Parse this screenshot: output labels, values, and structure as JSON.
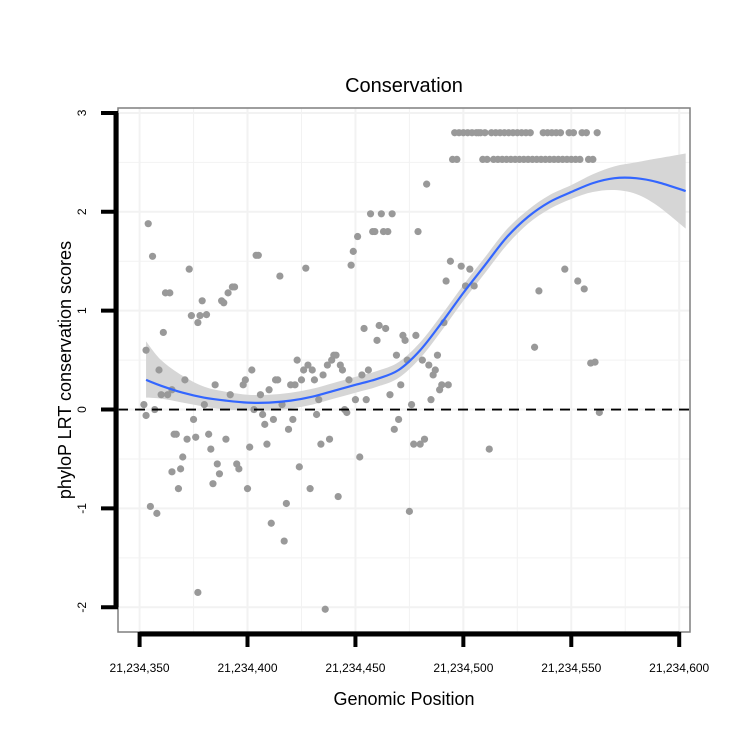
{
  "chart_data": {
    "type": "scatter",
    "title": "Conservation",
    "xlabel": "Genomic Position",
    "ylabel": "phyloP LRT conservation scores",
    "xlim": [
      21234340,
      21234605
    ],
    "ylim": [
      -2.25,
      3.05
    ],
    "x_ticks": [
      21234350,
      21234400,
      21234450,
      21234500,
      21234550,
      21234600
    ],
    "x_tick_labels": [
      "21,234,350",
      "21,234,400",
      "21,234,450",
      "21,234,500",
      "21,234,550",
      "21,234,600"
    ],
    "y_ticks": [
      -2,
      -1,
      0,
      1,
      2,
      3
    ],
    "y_tick_labels": [
      "-2",
      "-1",
      "0",
      "1",
      "2",
      "3"
    ],
    "reference_line": {
      "y": 0,
      "style": "dashed"
    },
    "grid": true,
    "colors": {
      "points": "#999999",
      "smooth": "#3366ff",
      "ribbon": "#d6d6d6",
      "background": "#ffffff",
      "grid": "#f2f2f2",
      "border": "#7f7f7f"
    },
    "smooth": {
      "x": [
        21234353,
        21234360,
        21234370,
        21234380,
        21234390,
        21234400,
        21234410,
        21234420,
        21234430,
        21234440,
        21234450,
        21234460,
        21234470,
        21234480,
        21234490,
        21234500,
        21234510,
        21234520,
        21234530,
        21234540,
        21234550,
        21234560,
        21234570,
        21234580,
        21234590,
        21234603
      ],
      "y": [
        0.3,
        0.24,
        0.17,
        0.12,
        0.09,
        0.07,
        0.07,
        0.09,
        0.13,
        0.19,
        0.25,
        0.31,
        0.4,
        0.6,
        0.88,
        1.18,
        1.46,
        1.74,
        1.95,
        2.1,
        2.2,
        2.29,
        2.34,
        2.34,
        2.3,
        2.21
      ],
      "lower": [
        0.12,
        0.11,
        0.07,
        0.03,
        0.0,
        -0.01,
        -0.01,
        0.01,
        0.05,
        0.11,
        0.17,
        0.23,
        0.32,
        0.52,
        0.8,
        1.1,
        1.38,
        1.66,
        1.88,
        2.03,
        2.13,
        2.2,
        2.22,
        2.18,
        2.06,
        1.83
      ],
      "upper": [
        0.69,
        0.5,
        0.34,
        0.23,
        0.18,
        0.15,
        0.15,
        0.17,
        0.21,
        0.27,
        0.33,
        0.39,
        0.48,
        0.68,
        0.96,
        1.26,
        1.54,
        1.82,
        2.02,
        2.17,
        2.27,
        2.38,
        2.46,
        2.5,
        2.54,
        2.59
      ]
    },
    "points": [
      [
        21234353,
        0.6
      ],
      [
        21234354,
        1.88
      ],
      [
        21234356,
        1.55
      ],
      [
        21234355,
        -0.98
      ],
      [
        21234358,
        -1.05
      ],
      [
        21234352,
        0.05
      ],
      [
        21234353,
        -0.06
      ],
      [
        21234357,
        0.0
      ],
      [
        21234359,
        0.4
      ],
      [
        21234360,
        0.15
      ],
      [
        21234361,
        0.78
      ],
      [
        21234362,
        1.18
      ],
      [
        21234364,
        1.18
      ],
      [
        21234363,
        0.15
      ],
      [
        21234365,
        0.2
      ],
      [
        21234366,
        -0.25
      ],
      [
        21234365,
        -0.63
      ],
      [
        21234367,
        -0.25
      ],
      [
        21234368,
        -0.8
      ],
      [
        21234369,
        -0.6
      ],
      [
        21234370,
        -0.48
      ],
      [
        21234371,
        0.3
      ],
      [
        21234372,
        -0.3
      ],
      [
        21234373,
        1.42
      ],
      [
        21234374,
        0.95
      ],
      [
        21234375,
        -0.1
      ],
      [
        21234376,
        -0.28
      ],
      [
        21234377,
        0.88
      ],
      [
        21234378,
        0.95
      ],
      [
        21234379,
        1.1
      ],
      [
        21234380,
        0.05
      ],
      [
        21234381,
        0.96
      ],
      [
        21234382,
        -0.25
      ],
      [
        21234377,
        -1.85
      ],
      [
        21234383,
        -0.4
      ],
      [
        21234384,
        -0.75
      ],
      [
        21234385,
        0.25
      ],
      [
        21234386,
        -0.55
      ],
      [
        21234387,
        -0.65
      ],
      [
        21234388,
        1.1
      ],
      [
        21234389,
        1.08
      ],
      [
        21234390,
        -0.3
      ],
      [
        21234391,
        1.18
      ],
      [
        21234392,
        0.15
      ],
      [
        21234393,
        1.24
      ],
      [
        21234394,
        1.24
      ],
      [
        21234395,
        -0.55
      ],
      [
        21234396,
        -0.6
      ],
      [
        21234398,
        0.25
      ],
      [
        21234399,
        0.3
      ],
      [
        21234400,
        -0.8
      ],
      [
        21234401,
        -0.38
      ],
      [
        21234402,
        0.4
      ],
      [
        21234404,
        1.56
      ],
      [
        21234405,
        1.56
      ],
      [
        21234403,
        0.0
      ],
      [
        21234406,
        0.15
      ],
      [
        21234407,
        -0.05
      ],
      [
        21234408,
        -0.15
      ],
      [
        21234409,
        -0.35
      ],
      [
        21234410,
        0.2
      ],
      [
        21234411,
        -1.15
      ],
      [
        21234412,
        -0.1
      ],
      [
        21234413,
        0.3
      ],
      [
        21234414,
        0.3
      ],
      [
        21234415,
        1.35
      ],
      [
        21234416,
        0.05
      ],
      [
        21234417,
        -1.33
      ],
      [
        21234418,
        -0.95
      ],
      [
        21234419,
        -0.2
      ],
      [
        21234420,
        0.25
      ],
      [
        21234421,
        -0.1
      ],
      [
        21234422,
        0.25
      ],
      [
        21234423,
        0.5
      ],
      [
        21234424,
        -0.58
      ],
      [
        21234425,
        0.3
      ],
      [
        21234426,
        0.4
      ],
      [
        21234427,
        1.43
      ],
      [
        21234428,
        0.45
      ],
      [
        21234429,
        -0.8
      ],
      [
        21234430,
        0.4
      ],
      [
        21234431,
        0.3
      ],
      [
        21234432,
        -0.05
      ],
      [
        21234433,
        0.1
      ],
      [
        21234434,
        -0.35
      ],
      [
        21234435,
        0.35
      ],
      [
        21234436,
        -2.02
      ],
      [
        21234437,
        0.45
      ],
      [
        21234438,
        -0.3
      ],
      [
        21234439,
        0.5
      ],
      [
        21234440,
        0.55
      ],
      [
        21234441,
        0.55
      ],
      [
        21234442,
        -0.88
      ],
      [
        21234443,
        0.45
      ],
      [
        21234444,
        0.4
      ],
      [
        21234445,
        0.0
      ],
      [
        21234446,
        -0.03
      ],
      [
        21234447,
        0.3
      ],
      [
        21234448,
        1.46
      ],
      [
        21234449,
        1.6
      ],
      [
        21234450,
        0.1
      ],
      [
        21234451,
        1.75
      ],
      [
        21234452,
        -0.48
      ],
      [
        21234453,
        0.35
      ],
      [
        21234454,
        0.82
      ],
      [
        21234455,
        0.1
      ],
      [
        21234456,
        0.4
      ],
      [
        21234457,
        1.98
      ],
      [
        21234458,
        1.8
      ],
      [
        21234459,
        1.8
      ],
      [
        21234460,
        0.7
      ],
      [
        21234461,
        0.85
      ],
      [
        21234462,
        1.98
      ],
      [
        21234463,
        1.8
      ],
      [
        21234464,
        0.82
      ],
      [
        21234465,
        1.8
      ],
      [
        21234466,
        0.15
      ],
      [
        21234467,
        1.98
      ],
      [
        21234468,
        -0.2
      ],
      [
        21234469,
        0.55
      ],
      [
        21234470,
        -0.1
      ],
      [
        21234471,
        0.25
      ],
      [
        21234472,
        0.75
      ],
      [
        21234473,
        0.7
      ],
      [
        21234474,
        0.5
      ],
      [
        21234475,
        -1.03
      ],
      [
        21234476,
        0.05
      ],
      [
        21234477,
        -0.35
      ],
      [
        21234478,
        0.75
      ],
      [
        21234479,
        1.8
      ],
      [
        21234480,
        -0.35
      ],
      [
        21234481,
        0.5
      ],
      [
        21234482,
        -0.3
      ],
      [
        21234483,
        2.28
      ],
      [
        21234484,
        0.45
      ],
      [
        21234485,
        0.1
      ],
      [
        21234486,
        0.35
      ],
      [
        21234487,
        0.4
      ],
      [
        21234488,
        0.55
      ],
      [
        21234489,
        0.2
      ],
      [
        21234490,
        0.25
      ],
      [
        21234491,
        0.88
      ],
      [
        21234492,
        1.3
      ],
      [
        21234493,
        0.25
      ],
      [
        21234494,
        1.5
      ],
      [
        21234495,
        2.53
      ],
      [
        21234496,
        2.8
      ],
      [
        21234497,
        2.53
      ],
      [
        21234498,
        2.8
      ],
      [
        21234499,
        1.45
      ],
      [
        21234500,
        2.8
      ],
      [
        21234501,
        1.25
      ],
      [
        21234502,
        2.8
      ],
      [
        21234503,
        1.42
      ],
      [
        21234504,
        2.8
      ],
      [
        21234505,
        1.25
      ],
      [
        21234506,
        2.8
      ],
      [
        21234507,
        2.8
      ],
      [
        21234508,
        2.8
      ],
      [
        21234509,
        2.53
      ],
      [
        21234510,
        2.8
      ],
      [
        21234511,
        2.53
      ],
      [
        21234512,
        -0.4
      ],
      [
        21234513,
        2.8
      ],
      [
        21234514,
        2.53
      ],
      [
        21234515,
        2.8
      ],
      [
        21234516,
        2.53
      ],
      [
        21234517,
        2.8
      ],
      [
        21234518,
        2.53
      ],
      [
        21234519,
        2.8
      ],
      [
        21234520,
        2.53
      ],
      [
        21234521,
        2.8
      ],
      [
        21234522,
        2.53
      ],
      [
        21234523,
        2.8
      ],
      [
        21234524,
        2.53
      ],
      [
        21234525,
        2.8
      ],
      [
        21234526,
        2.53
      ],
      [
        21234527,
        2.8
      ],
      [
        21234528,
        2.53
      ],
      [
        21234529,
        2.8
      ],
      [
        21234530,
        2.53
      ],
      [
        21234531,
        2.8
      ],
      [
        21234532,
        2.53
      ],
      [
        21234533,
        0.63
      ],
      [
        21234534,
        2.53
      ],
      [
        21234535,
        1.2
      ],
      [
        21234536,
        2.53
      ],
      [
        21234537,
        2.8
      ],
      [
        21234538,
        2.53
      ],
      [
        21234539,
        2.8
      ],
      [
        21234540,
        2.53
      ],
      [
        21234541,
        2.8
      ],
      [
        21234542,
        2.53
      ],
      [
        21234543,
        2.8
      ],
      [
        21234544,
        2.53
      ],
      [
        21234545,
        2.8
      ],
      [
        21234546,
        2.53
      ],
      [
        21234547,
        1.42
      ],
      [
        21234548,
        2.53
      ],
      [
        21234549,
        2.8
      ],
      [
        21234550,
        2.53
      ],
      [
        21234551,
        2.8
      ],
      [
        21234552,
        2.53
      ],
      [
        21234553,
        1.3
      ],
      [
        21234554,
        2.53
      ],
      [
        21234555,
        2.8
      ],
      [
        21234556,
        1.22
      ],
      [
        21234557,
        2.8
      ],
      [
        21234558,
        2.53
      ],
      [
        21234559,
        0.47
      ],
      [
        21234560,
        2.53
      ],
      [
        21234561,
        0.48
      ],
      [
        21234562,
        2.8
      ],
      [
        21234563,
        -0.03
      ]
    ]
  }
}
